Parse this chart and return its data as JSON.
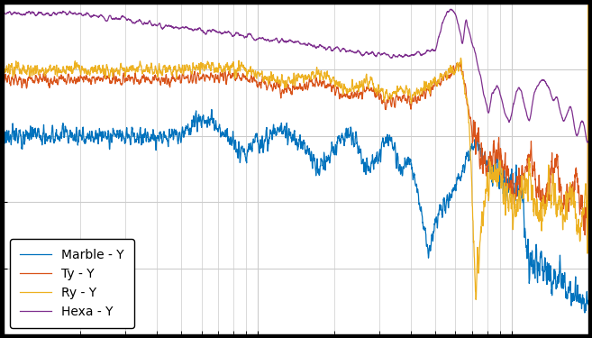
{
  "colors": {
    "marble": "#0072BD",
    "ty": "#D95319",
    "ry": "#EDB120",
    "hexa": "#7E2F8E"
  },
  "legend_labels": [
    "Marble - Y",
    "Ty - Y",
    "Ry - Y",
    "Hexa - Y"
  ],
  "xlim": [
    1,
    200
  ],
  "ylim": [
    -160,
    -60
  ],
  "background_color": "#ffffff",
  "grid_color": "#cccccc",
  "figsize": [
    6.57,
    3.75
  ],
  "dpi": 100
}
